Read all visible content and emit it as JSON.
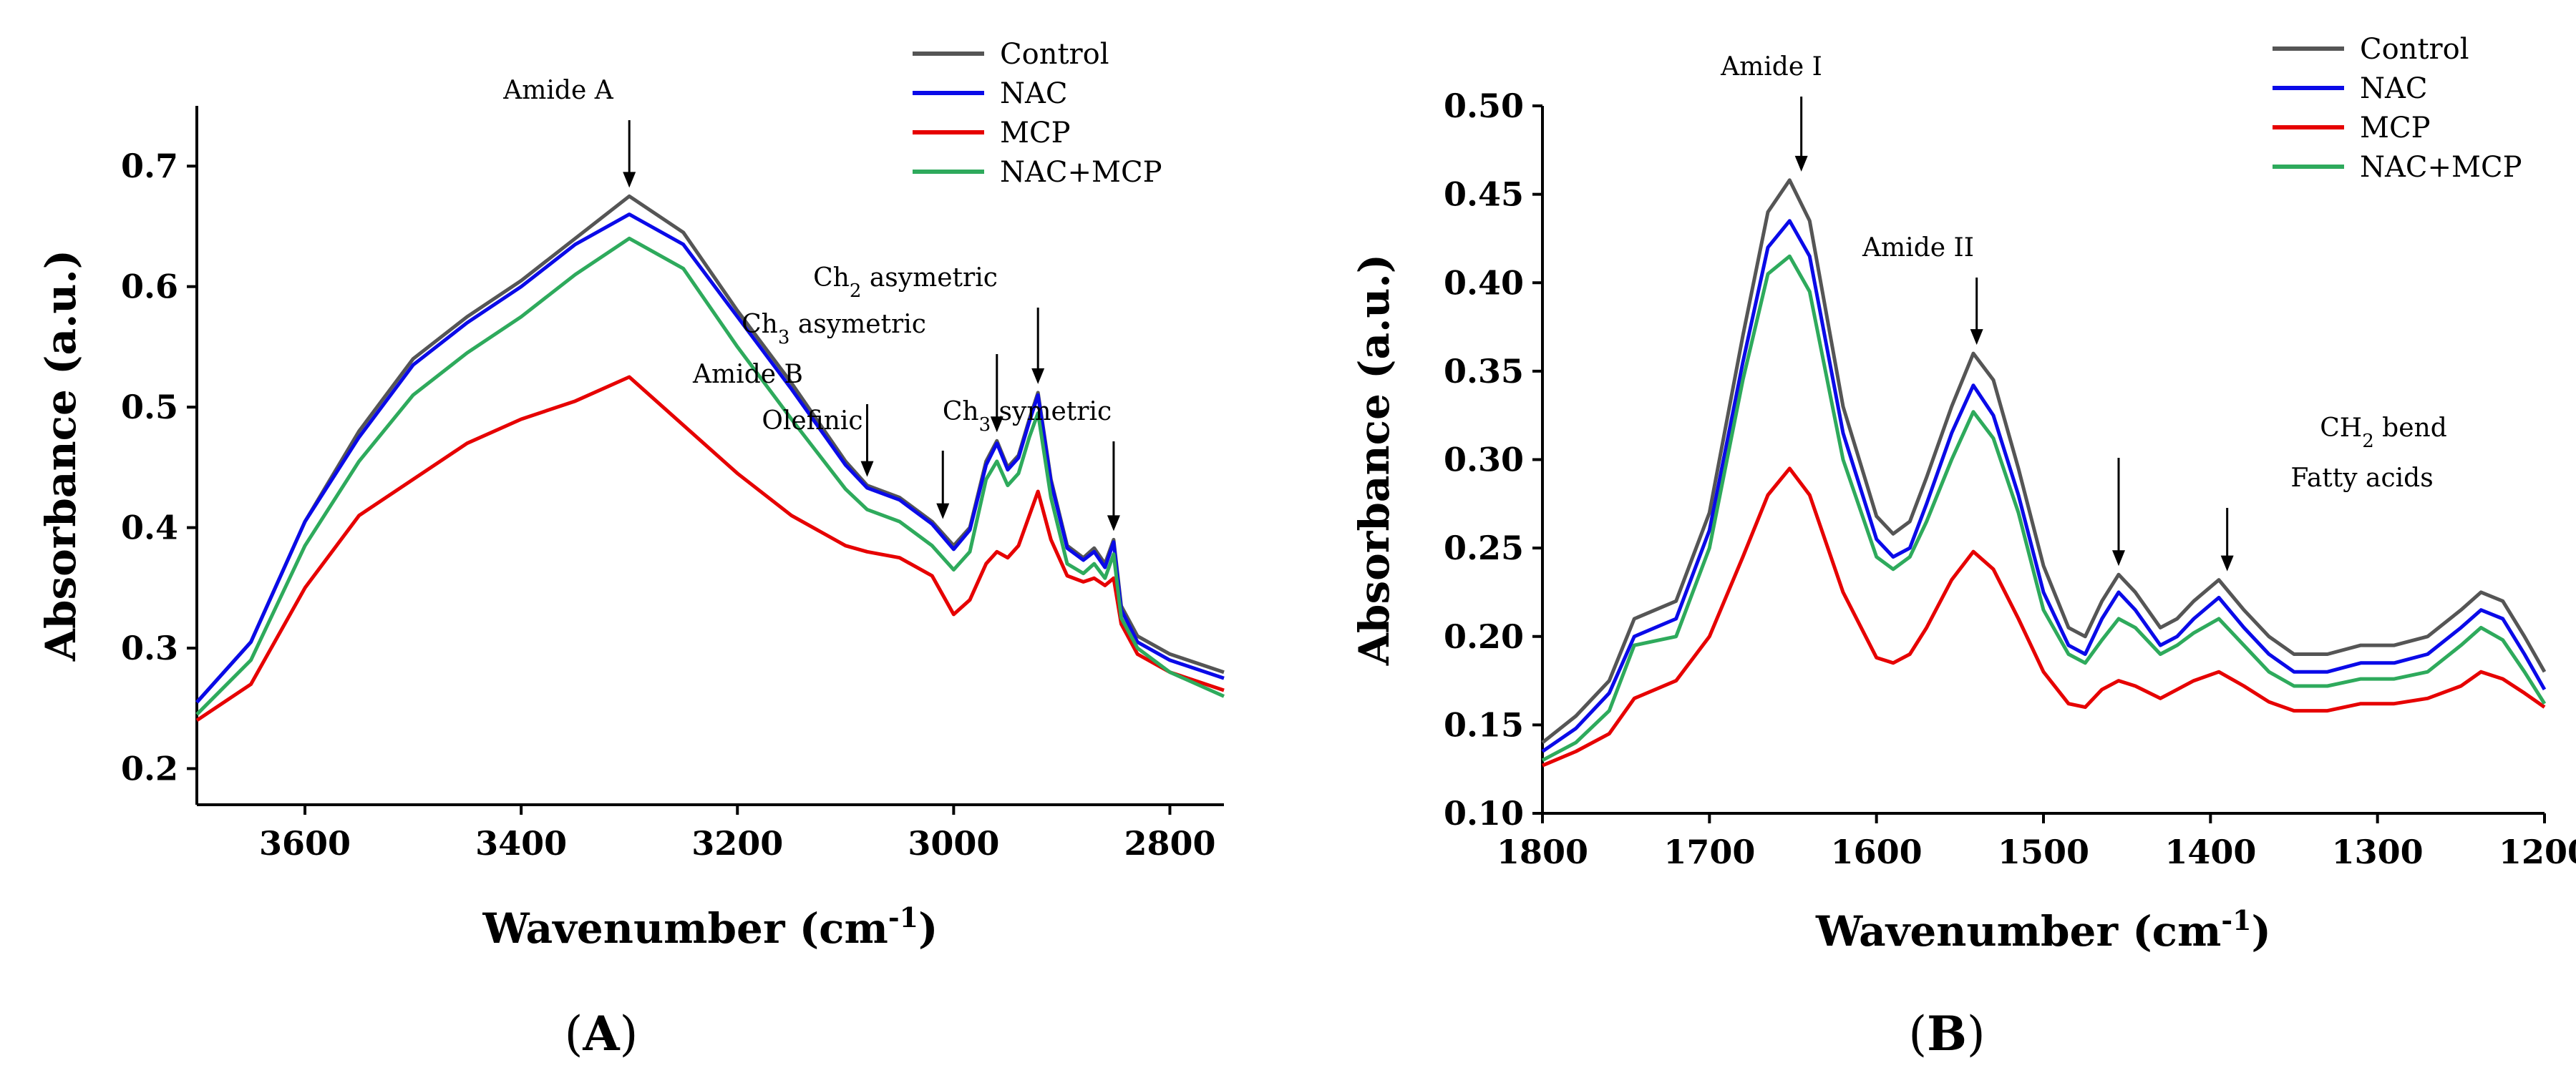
{
  "chart_data": [
    {
      "type": "line",
      "panel_label_prefix": "(",
      "panel_label_letter": "A",
      "panel_label_suffix": ")",
      "xlabel": "Wavenumber (cm",
      "xlabel_sup": "-1",
      "xlabel_end": ")",
      "ylabel": "Absorbance (a.u.)",
      "xlim": [
        3700,
        2750
      ],
      "ylim": [
        0.17,
        0.75
      ],
      "xticks": [
        3600,
        3400,
        3200,
        3000,
        2800
      ],
      "xtick_labels": [
        "3600",
        "3400",
        "3200",
        "3000",
        "2800"
      ],
      "yticks": [
        0.2,
        0.3,
        0.4,
        0.5,
        0.6,
        0.7
      ],
      "ytick_labels": [
        "0.2",
        "0.3",
        "0.4",
        "0.5",
        "0.6",
        "0.7"
      ],
      "legend_position": "top-right",
      "series": [
        {
          "name": "Control",
          "color": "#555555",
          "x": [
            3700,
            3650,
            3600,
            3550,
            3500,
            3450,
            3400,
            3350,
            3300,
            3250,
            3200,
            3150,
            3100,
            3080,
            3050,
            3020,
            3000,
            2985,
            2970,
            2960,
            2950,
            2940,
            2930,
            2922,
            2910,
            2895,
            2880,
            2870,
            2860,
            2852,
            2845,
            2830,
            2800,
            2750
          ],
          "y": [
            0.255,
            0.305,
            0.405,
            0.48,
            0.54,
            0.575,
            0.605,
            0.64,
            0.675,
            0.645,
            0.58,
            0.52,
            0.455,
            0.435,
            0.425,
            0.405,
            0.385,
            0.4,
            0.455,
            0.472,
            0.45,
            0.46,
            0.49,
            0.512,
            0.44,
            0.385,
            0.375,
            0.383,
            0.37,
            0.39,
            0.335,
            0.31,
            0.295,
            0.28
          ]
        },
        {
          "name": "NAC",
          "color": "#0a0ae8",
          "x": [
            3700,
            3650,
            3600,
            3550,
            3500,
            3450,
            3400,
            3350,
            3300,
            3250,
            3200,
            3150,
            3100,
            3080,
            3050,
            3020,
            3000,
            2985,
            2970,
            2960,
            2950,
            2940,
            2930,
            2922,
            2910,
            2895,
            2880,
            2870,
            2860,
            2852,
            2845,
            2830,
            2800,
            2750
          ],
          "y": [
            0.255,
            0.305,
            0.405,
            0.475,
            0.535,
            0.57,
            0.6,
            0.635,
            0.66,
            0.635,
            0.575,
            0.515,
            0.452,
            0.433,
            0.423,
            0.403,
            0.382,
            0.398,
            0.452,
            0.47,
            0.448,
            0.458,
            0.488,
            0.51,
            0.438,
            0.383,
            0.373,
            0.38,
            0.367,
            0.388,
            0.332,
            0.305,
            0.29,
            0.275
          ]
        },
        {
          "name": "MCP",
          "color": "#e60000",
          "x": [
            3700,
            3650,
            3600,
            3550,
            3500,
            3450,
            3400,
            3350,
            3300,
            3250,
            3200,
            3150,
            3100,
            3080,
            3050,
            3020,
            3000,
            2985,
            2970,
            2960,
            2950,
            2940,
            2930,
            2922,
            2910,
            2895,
            2880,
            2870,
            2860,
            2852,
            2845,
            2830,
            2800,
            2750
          ],
          "y": [
            0.24,
            0.27,
            0.35,
            0.41,
            0.44,
            0.47,
            0.49,
            0.505,
            0.525,
            0.485,
            0.445,
            0.41,
            0.385,
            0.38,
            0.375,
            0.36,
            0.328,
            0.34,
            0.37,
            0.38,
            0.375,
            0.385,
            0.41,
            0.43,
            0.39,
            0.36,
            0.355,
            0.358,
            0.352,
            0.358,
            0.32,
            0.295,
            0.28,
            0.265
          ]
        },
        {
          "name": "NAC+MCP",
          "color": "#2eaa5c",
          "x": [
            3700,
            3650,
            3600,
            3550,
            3500,
            3450,
            3400,
            3350,
            3300,
            3250,
            3200,
            3150,
            3100,
            3080,
            3050,
            3020,
            3000,
            2985,
            2970,
            2960,
            2950,
            2940,
            2930,
            2922,
            2910,
            2895,
            2880,
            2870,
            2860,
            2852,
            2845,
            2830,
            2800,
            2750
          ],
          "y": [
            0.245,
            0.29,
            0.385,
            0.455,
            0.51,
            0.545,
            0.575,
            0.61,
            0.64,
            0.615,
            0.55,
            0.49,
            0.432,
            0.415,
            0.405,
            0.385,
            0.365,
            0.38,
            0.44,
            0.455,
            0.435,
            0.445,
            0.475,
            0.495,
            0.425,
            0.37,
            0.362,
            0.37,
            0.358,
            0.378,
            0.325,
            0.3,
            0.28,
            0.26
          ]
        }
      ],
      "annotations": [
        {
          "text": "Amide A",
          "sub": "",
          "rest": "",
          "x": 3300,
          "y": 0.675
        },
        {
          "text": "Amide B",
          "sub": "",
          "rest": "",
          "x": 3080,
          "y": 0.435
        },
        {
          "text": "Olefinic",
          "sub": "",
          "rest": "",
          "x": 3010,
          "y": 0.4
        },
        {
          "text": "Ch",
          "sub": "3",
          "rest": " asymetric",
          "x": 2960,
          "y": 0.472
        },
        {
          "text": "Ch",
          "sub": "2",
          "rest": " asymetric",
          "x": 2922,
          "y": 0.512
        },
        {
          "text": "Ch",
          "sub": "3",
          "rest": " symetric",
          "x": 2852,
          "y": 0.39
        }
      ]
    },
    {
      "type": "line",
      "panel_label_prefix": "(",
      "panel_label_letter": "B",
      "panel_label_suffix": ")",
      "xlabel": "Wavenumber (cm",
      "xlabel_sup": "-1",
      "xlabel_end": ")",
      "ylabel": "Absorbance (a.u.)",
      "xlim": [
        1800,
        1200
      ],
      "ylim": [
        0.1,
        0.5
      ],
      "xticks": [
        1800,
        1700,
        1600,
        1500,
        1400,
        1300,
        1200
      ],
      "xtick_labels": [
        "1800",
        "1700",
        "1600",
        "1500",
        "1400",
        "1300",
        "1200"
      ],
      "yticks": [
        0.1,
        0.15,
        0.2,
        0.25,
        0.3,
        0.35,
        0.4,
        0.45,
        0.5
      ],
      "ytick_labels": [
        "0.10",
        "0.15",
        "0.20",
        "0.25",
        "0.30",
        "0.35",
        "0.40",
        "0.45",
        "0.50"
      ],
      "legend_position": "top-right",
      "series": [
        {
          "name": "Control",
          "color": "#555555",
          "x": [
            1800,
            1780,
            1760,
            1745,
            1720,
            1700,
            1680,
            1665,
            1652,
            1640,
            1620,
            1600,
            1590,
            1580,
            1570,
            1555,
            1542,
            1530,
            1515,
            1500,
            1485,
            1475,
            1465,
            1455,
            1445,
            1430,
            1420,
            1410,
            1395,
            1380,
            1365,
            1350,
            1330,
            1310,
            1290,
            1270,
            1250,
            1238,
            1225,
            1212,
            1200
          ],
          "y": [
            0.14,
            0.155,
            0.175,
            0.21,
            0.22,
            0.27,
            0.37,
            0.44,
            0.458,
            0.435,
            0.33,
            0.268,
            0.258,
            0.265,
            0.29,
            0.33,
            0.36,
            0.345,
            0.295,
            0.24,
            0.205,
            0.2,
            0.22,
            0.235,
            0.225,
            0.205,
            0.21,
            0.22,
            0.232,
            0.215,
            0.2,
            0.19,
            0.19,
            0.195,
            0.195,
            0.2,
            0.215,
            0.225,
            0.22,
            0.2,
            0.18
          ]
        },
        {
          "name": "NAC",
          "color": "#0a0ae8",
          "x": [
            1800,
            1780,
            1760,
            1745,
            1720,
            1700,
            1680,
            1665,
            1652,
            1640,
            1620,
            1600,
            1590,
            1580,
            1570,
            1555,
            1542,
            1530,
            1515,
            1500,
            1485,
            1475,
            1465,
            1455,
            1445,
            1430,
            1420,
            1410,
            1395,
            1380,
            1365,
            1350,
            1330,
            1310,
            1290,
            1270,
            1250,
            1238,
            1225,
            1212,
            1200
          ],
          "y": [
            0.135,
            0.148,
            0.168,
            0.2,
            0.21,
            0.26,
            0.355,
            0.42,
            0.435,
            0.415,
            0.315,
            0.255,
            0.245,
            0.25,
            0.275,
            0.315,
            0.342,
            0.325,
            0.28,
            0.225,
            0.195,
            0.19,
            0.21,
            0.225,
            0.215,
            0.195,
            0.2,
            0.21,
            0.222,
            0.205,
            0.19,
            0.18,
            0.18,
            0.185,
            0.185,
            0.19,
            0.205,
            0.215,
            0.21,
            0.19,
            0.17
          ]
        },
        {
          "name": "MCP",
          "color": "#e60000",
          "x": [
            1800,
            1780,
            1760,
            1745,
            1720,
            1700,
            1680,
            1665,
            1652,
            1640,
            1620,
            1600,
            1590,
            1580,
            1570,
            1555,
            1542,
            1530,
            1515,
            1500,
            1485,
            1475,
            1465,
            1455,
            1445,
            1430,
            1420,
            1410,
            1395,
            1380,
            1365,
            1350,
            1330,
            1310,
            1290,
            1270,
            1250,
            1238,
            1225,
            1212,
            1200
          ],
          "y": [
            0.127,
            0.135,
            0.145,
            0.165,
            0.175,
            0.2,
            0.245,
            0.28,
            0.295,
            0.28,
            0.225,
            0.188,
            0.185,
            0.19,
            0.205,
            0.232,
            0.248,
            0.238,
            0.21,
            0.18,
            0.162,
            0.16,
            0.17,
            0.175,
            0.172,
            0.165,
            0.17,
            0.175,
            0.18,
            0.172,
            0.163,
            0.158,
            0.158,
            0.162,
            0.162,
            0.165,
            0.172,
            0.18,
            0.176,
            0.168,
            0.16
          ]
        },
        {
          "name": "NAC+MCP",
          "color": "#2eaa5c",
          "x": [
            1800,
            1780,
            1760,
            1745,
            1720,
            1700,
            1680,
            1665,
            1652,
            1640,
            1620,
            1600,
            1590,
            1580,
            1570,
            1555,
            1542,
            1530,
            1515,
            1500,
            1485,
            1475,
            1465,
            1455,
            1445,
            1430,
            1420,
            1410,
            1395,
            1380,
            1365,
            1350,
            1330,
            1310,
            1290,
            1270,
            1250,
            1238,
            1225,
            1212,
            1200
          ],
          "y": [
            0.13,
            0.14,
            0.158,
            0.195,
            0.2,
            0.25,
            0.345,
            0.405,
            0.415,
            0.395,
            0.3,
            0.245,
            0.238,
            0.245,
            0.265,
            0.3,
            0.327,
            0.312,
            0.27,
            0.215,
            0.19,
            0.185,
            0.198,
            0.21,
            0.205,
            0.19,
            0.195,
            0.202,
            0.21,
            0.195,
            0.18,
            0.172,
            0.172,
            0.176,
            0.176,
            0.18,
            0.195,
            0.205,
            0.198,
            0.18,
            0.162
          ]
        }
      ],
      "annotations": [
        {
          "text": "Amide I",
          "sub": "",
          "rest": "",
          "x": 1645,
          "y": 0.458
        },
        {
          "text": "Amide II",
          "sub": "",
          "rest": "",
          "x": 1540,
          "y": 0.36
        },
        {
          "text": "CH",
          "sub": "2",
          "rest": " bend",
          "x": 1455,
          "y": 0.235
        },
        {
          "text": "Fatty acids",
          "sub": "",
          "rest": "",
          "x": 1390,
          "y": 0.232
        }
      ]
    }
  ]
}
